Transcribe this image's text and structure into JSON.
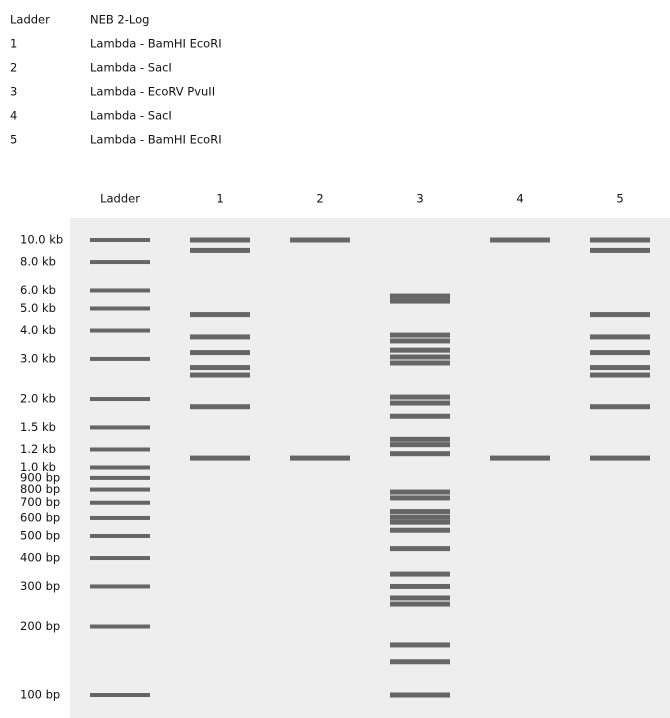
{
  "legend": {
    "rows": [
      [
        "Ladder",
        "NEB 2-Log"
      ],
      [
        "1",
        "Lambda - BamHI EcoRI"
      ],
      [
        "2",
        "Lambda - SacI"
      ],
      [
        "3",
        "Lambda - EcoRV PvuII"
      ],
      [
        "4",
        "Lambda - SacI"
      ],
      [
        "5",
        "Lambda - BamHI EcoRI"
      ]
    ]
  },
  "ladder": [
    {
      "value": 10000,
      "label": "10.0 kb"
    },
    {
      "value": 8000,
      "label": "8.0 kb"
    },
    {
      "value": 6000,
      "label": "6.0 kb"
    },
    {
      "value": 5000,
      "label": "5.0 kb"
    },
    {
      "value": 4000,
      "label": "4.0 kb"
    },
    {
      "value": 3000,
      "label": "3.0 kb"
    },
    {
      "value": 2000,
      "label": "2.0 kb"
    },
    {
      "value": 1500,
      "label": "1.5 kb"
    },
    {
      "value": 1200,
      "label": "1.2 kb"
    },
    {
      "value": 1000,
      "label": "1.0 kb"
    },
    {
      "value": 900,
      "label": "900 bp"
    },
    {
      "value": 800,
      "label": "800 bp"
    },
    {
      "value": 700,
      "label": "700 bp"
    },
    {
      "value": 600,
      "label": "600 bp"
    },
    {
      "value": 500,
      "label": "500 bp"
    },
    {
      "value": 400,
      "label": "400 bp"
    },
    {
      "value": 300,
      "label": "300 bp"
    },
    {
      "value": 200,
      "label": "200 bp"
    },
    {
      "value": 100,
      "label": "100 bp"
    }
  ],
  "lanes": [
    {
      "label": "Ladder"
    },
    {
      "label": "1",
      "bands": [
        10000,
        9000,
        4700,
        3750,
        3200,
        2750,
        2550,
        1850,
        1100
      ]
    },
    {
      "label": "2",
      "bands": [
        10000,
        1100
      ]
    },
    {
      "label": "3",
      "bands": [
        5670,
        5390,
        3820,
        3600,
        3280,
        3060,
        2880,
        2040,
        1920,
        1680,
        1330,
        1260,
        1150,
        780,
        735,
        640,
        605,
        575,
        530,
        440,
        340,
        300,
        267,
        251,
        166,
        140,
        100
      ]
    },
    {
      "label": "4",
      "bands": [
        10000,
        1100
      ]
    },
    {
      "label": "5",
      "bands": [
        10000,
        9000,
        4700,
        3750,
        3200,
        2750,
        2550,
        1850,
        1100
      ]
    }
  ]
}
